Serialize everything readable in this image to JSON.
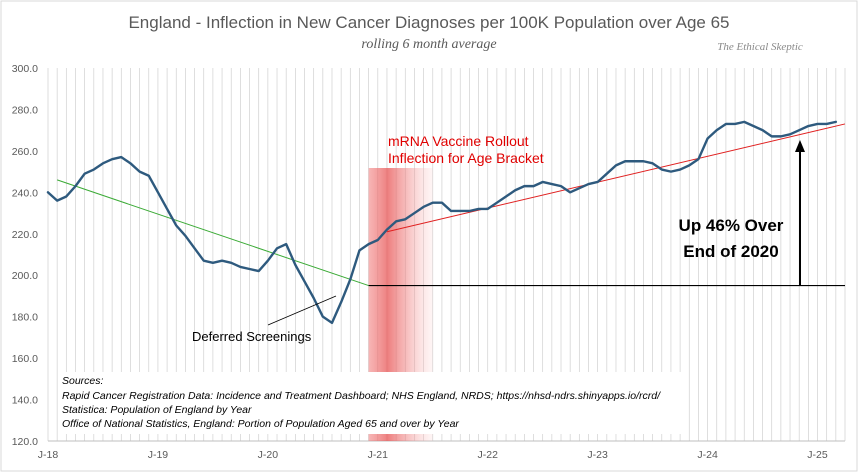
{
  "chart_data": {
    "type": "line",
    "title": "England - Inflection in New Cancer Diagnoses per 100K Population over Age 65",
    "subtitle": "rolling 6 month average",
    "watermark": "The Ethical Skeptic",
    "xlabel": "",
    "ylabel": "",
    "ylim": [
      120,
      300
    ],
    "yticks": [
      "120.0",
      "140.0",
      "160.0",
      "180.0",
      "200.0",
      "220.0",
      "240.0",
      "260.0",
      "280.0",
      "300.0"
    ],
    "xticks": [
      "J-18",
      "J-19",
      "J-20",
      "J-21",
      "J-22",
      "J-23",
      "J-24",
      "J-25"
    ],
    "grid": "vertical monthly lines",
    "legend": "none",
    "series": [
      {
        "x": [
          0,
          1,
          2,
          3,
          4,
          5,
          6,
          7,
          8,
          9,
          10,
          11,
          12,
          13,
          14,
          15,
          16,
          17,
          18,
          19,
          20,
          21,
          22,
          23,
          24,
          25,
          26,
          27,
          28,
          29,
          30,
          31,
          32,
          33,
          34,
          35,
          36,
          37,
          38,
          39,
          40,
          41,
          42,
          43,
          44,
          45,
          46,
          47,
          48,
          49,
          50,
          51,
          52,
          53,
          54,
          55,
          56,
          57,
          58,
          59,
          60,
          61,
          62,
          63,
          64,
          65,
          66,
          67,
          68,
          69,
          70,
          71,
          72,
          73,
          74,
          75,
          76,
          77,
          78,
          79,
          80,
          81,
          82,
          83,
          84,
          85,
          86
        ],
        "values": [
          240,
          236,
          238,
          243,
          249,
          251,
          254,
          256,
          257,
          254,
          250,
          248,
          240,
          232,
          224,
          219,
          213,
          207,
          206,
          207,
          206,
          204,
          203,
          202,
          207,
          213,
          215,
          205,
          197,
          189,
          180,
          177,
          187,
          198,
          212,
          215,
          217,
          222,
          226,
          227,
          230,
          233,
          235,
          235,
          231,
          231,
          231,
          232,
          232,
          235,
          238,
          241,
          243,
          243,
          245,
          244,
          243,
          240,
          242,
          244,
          245,
          249,
          253,
          255,
          255,
          255,
          254,
          251,
          250,
          251,
          253,
          256,
          266,
          270,
          273,
          273,
          274,
          272,
          270,
          267,
          267,
          268,
          270,
          272,
          273,
          273,
          274
        ],
        "color": "#2e5a7e"
      }
    ],
    "trendlines": [
      {
        "label": "",
        "color": "#3aaa35",
        "from": [
          1,
          246
        ],
        "to": [
          35,
          195
        ]
      },
      {
        "label": "",
        "color": "#e02020",
        "from": [
          37,
          221
        ],
        "to": [
          87,
          273
        ]
      }
    ],
    "baseline": {
      "value": 195,
      "from_x": 35,
      "color": "#000000"
    },
    "highlight": {
      "from_x": 35,
      "to_x": 42,
      "color": "#e05050"
    },
    "annotations": {
      "rollout_line1": "mRNA Vaccine Rollout",
      "rollout_line2": "Inflection for Age Bracket",
      "deferred": "Deferred Screenings",
      "up_line1": "Up 46% Over",
      "up_line2": "End of 2020"
    },
    "sources": [
      "Sources:",
      "Rapid Cancer Registration Data: Incidence and Treatment Dashboard; NHS England, NRDS; https://nhsd-ndrs.shinyapps.io/rcrd/",
      "Statistica: Population of England by Year",
      "Office of National Statistics, England: Portion of Population Aged 65 and over  by Year"
    ]
  }
}
